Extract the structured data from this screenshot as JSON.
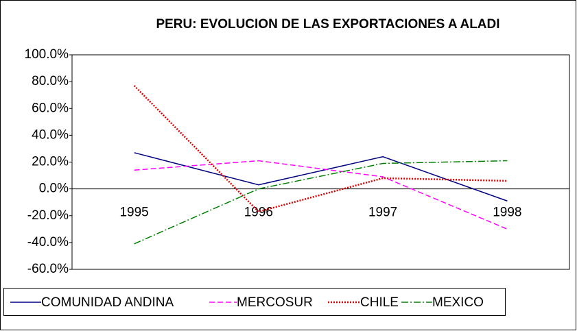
{
  "chart_data": {
    "type": "line",
    "title": "PERU: EVOLUCION DE LAS EXPORTACIONES A ALADI",
    "categories": [
      "1995",
      "1996",
      "1997",
      "1998"
    ],
    "series": [
      {
        "name": "COMUNIDAD ANDINA",
        "color": "#000080",
        "values": [
          27,
          3,
          24,
          -9
        ]
      },
      {
        "name": "MERCOSUR",
        "color": "#ff00ff",
        "values": [
          14,
          21,
          9,
          -30
        ]
      },
      {
        "name": "CHILE",
        "color": "#dd0000",
        "values": [
          77,
          -17,
          8,
          6
        ]
      },
      {
        "name": "MEXICO",
        "color": "#008000",
        "values": [
          -41,
          0,
          19,
          21
        ]
      }
    ],
    "ylim": [
      -60,
      100
    ],
    "yticks": [
      {
        "value": 100,
        "label": "100.0%"
      },
      {
        "value": 80,
        "label": "80.0%"
      },
      {
        "value": 60,
        "label": "60.0%"
      },
      {
        "value": 40,
        "label": "40.0%"
      },
      {
        "value": 20,
        "label": "20.0%"
      },
      {
        "value": 0,
        "label": "0.0%"
      },
      {
        "value": -20,
        "label": "-20.0%"
      },
      {
        "value": -40,
        "label": "-40.0%"
      },
      {
        "value": -60,
        "label": "-60.0%"
      }
    ],
    "legend": "bottom"
  }
}
